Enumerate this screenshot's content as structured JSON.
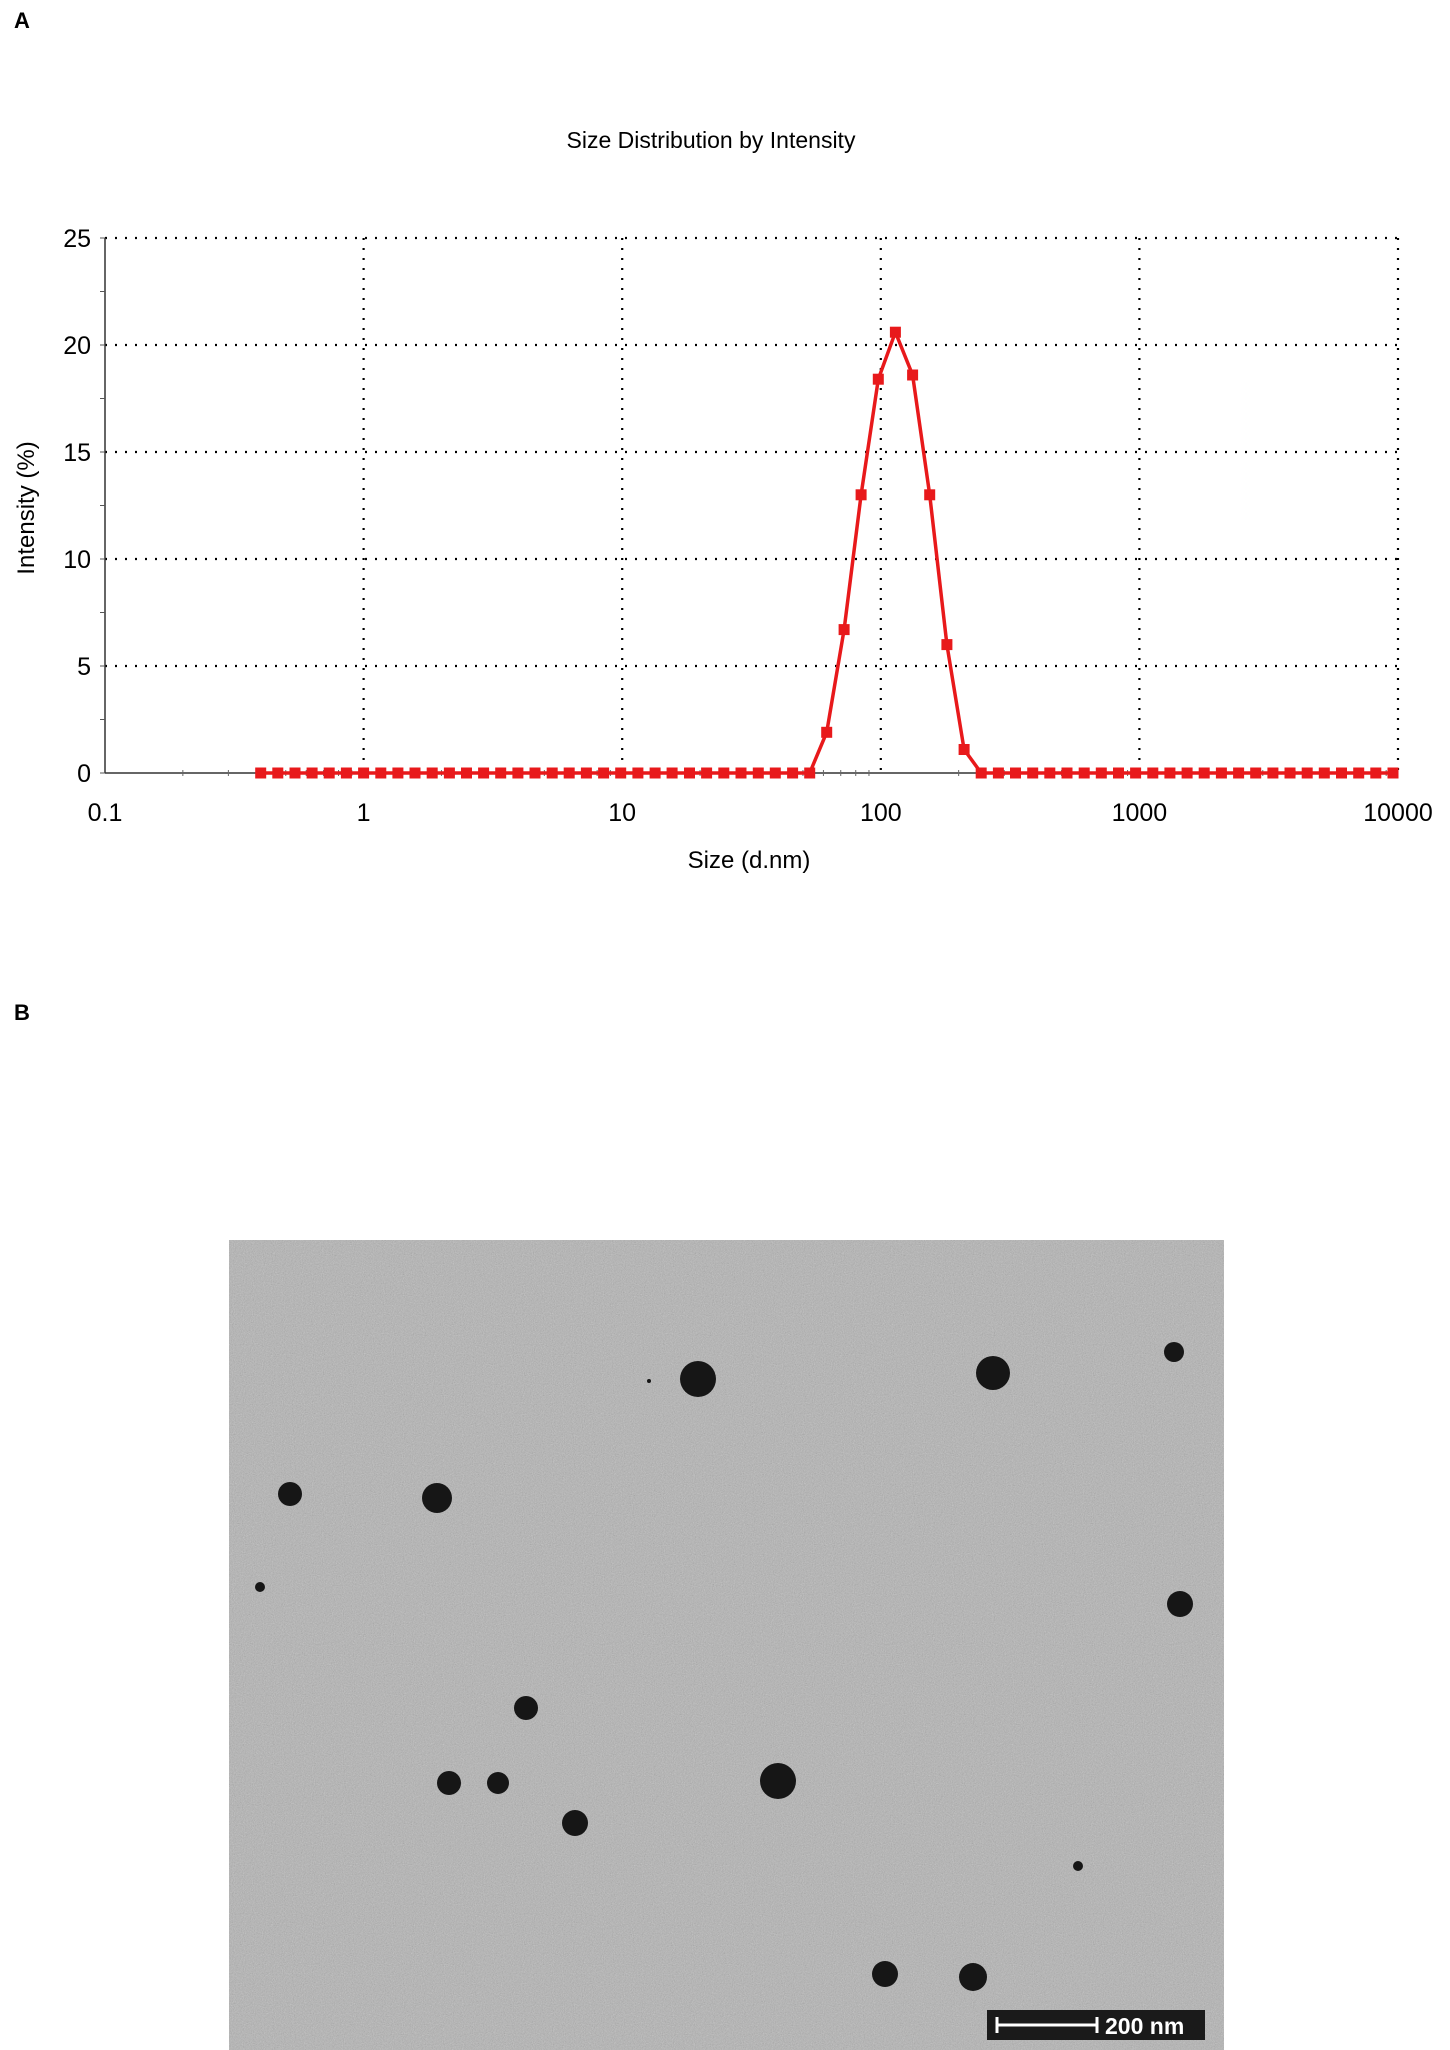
{
  "panels": {
    "a_label": "A",
    "b_label": "B"
  },
  "colors": {
    "series": "#e8191b",
    "grid": "#000000",
    "tem_background": "#b3b3b3",
    "particle": "#161616"
  },
  "chart_data": {
    "type": "line",
    "title": "Size Distribution by Intensity",
    "xlabel": "Size (d.nm)",
    "ylabel": "Intensity (%)",
    "x_scale": "log",
    "xlim": [
      0.1,
      10000
    ],
    "ylim": [
      0,
      25
    ],
    "x_ticks": [
      "0.1",
      "1",
      "10",
      "100",
      "1000",
      "10000"
    ],
    "y_ticks": [
      "0",
      "5",
      "10",
      "15",
      "20",
      "25"
    ],
    "grid": true,
    "marker": "square",
    "series": [
      {
        "x": [
          0.4,
          0.466,
          0.543,
          0.632,
          0.736,
          0.858,
          1.0,
          1.165,
          1.357,
          1.581,
          1.842,
          2.146,
          2.5,
          2.91,
          3.39,
          3.95,
          4.6,
          5.36,
          6.24,
          7.27,
          8.47,
          9.87,
          11.5,
          13.4,
          15.6,
          18.2,
          21.2,
          24.7,
          28.8,
          33.6,
          39.1,
          45.6,
          53.1,
          61.8,
          72.1,
          83.9,
          97.8,
          113.9,
          132.7,
          154.6,
          180.1,
          209.9,
          244.5,
          284.9,
          331.9,
          386.7,
          450.5,
          524.8,
          611.5,
          712.4,
          829.9,
          966.9,
          1126.5,
          1312.4,
          1529,
          1781,
          2075,
          2418,
          2817,
          3282,
          3824,
          4455,
          5190,
          6047,
          7045,
          8208,
          9563
        ],
        "y": [
          0,
          0,
          0,
          0,
          0,
          0,
          0,
          0,
          0,
          0,
          0,
          0,
          0,
          0,
          0,
          0,
          0,
          0,
          0,
          0,
          0,
          0,
          0,
          0,
          0,
          0,
          0,
          0,
          0,
          0,
          0,
          0,
          0,
          1.9,
          6.7,
          13.0,
          18.4,
          20.6,
          18.6,
          13.0,
          6.0,
          1.1,
          0,
          0,
          0,
          0,
          0,
          0,
          0,
          0,
          0,
          0,
          0,
          0,
          0,
          0,
          0,
          0,
          0,
          0,
          0,
          0,
          0,
          0,
          0,
          0,
          0
        ]
      }
    ]
  },
  "tem_image": {
    "scale_bar_label": "200 nm",
    "scale_bar_length_nm": 200
  }
}
